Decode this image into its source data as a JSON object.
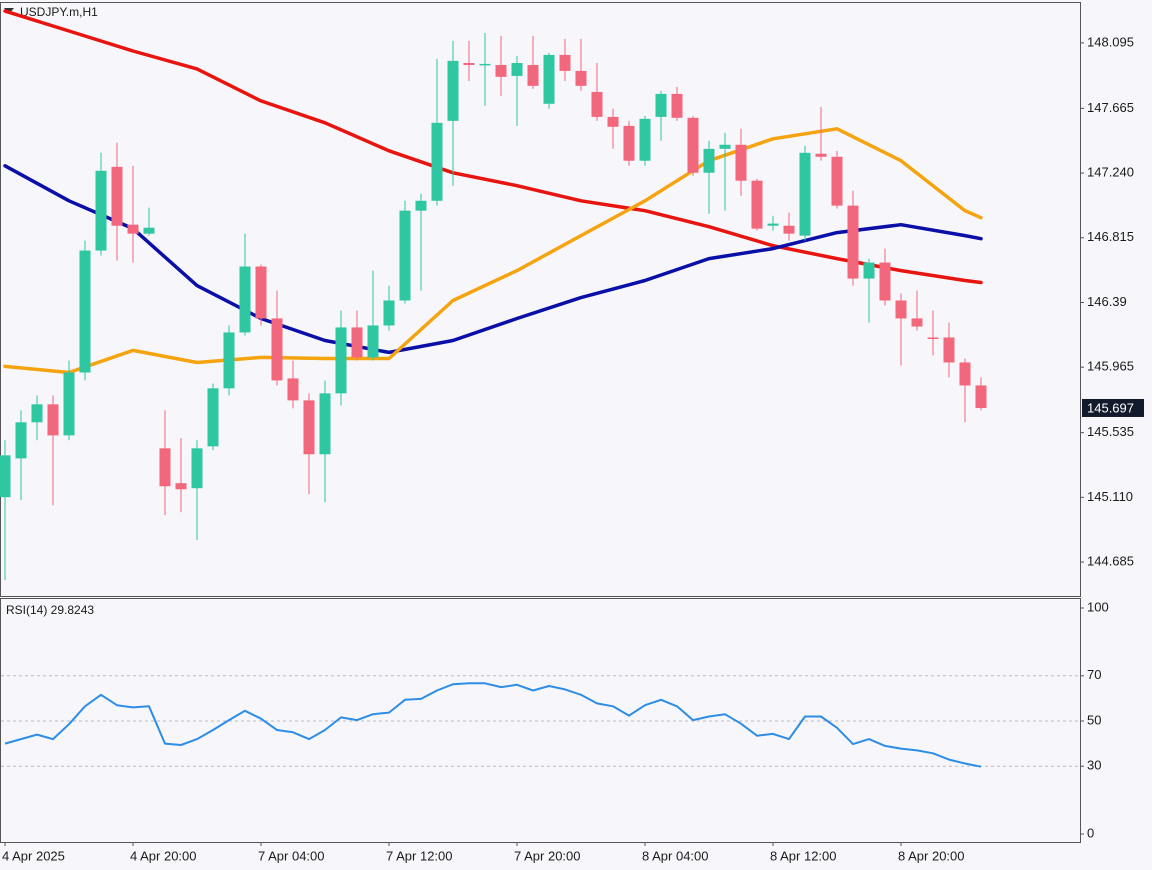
{
  "chart_data": [
    {
      "type": "candlestick",
      "title": "USDJPY.m,H1",
      "categories": [
        "4 Apr 2025",
        null,
        null,
        null,
        null,
        null,
        null,
        null,
        "4 Apr 20:00",
        null,
        null,
        null,
        null,
        null,
        null,
        null,
        "7 Apr 04:00",
        null,
        null,
        null,
        null,
        null,
        null,
        null,
        "7 Apr 12:00",
        null,
        null,
        null,
        null,
        null,
        null,
        null,
        "7 Apr 20:00",
        null,
        null,
        null,
        null,
        null,
        null,
        null,
        "8 Apr 04:00",
        null,
        null,
        null,
        null,
        null,
        null,
        null,
        "8 Apr 12:00",
        null,
        null,
        null,
        null,
        null,
        null,
        null,
        "8 Apr 20:00",
        null,
        null,
        null,
        null,
        null
      ],
      "open": [
        145.111,
        145.366,
        145.603,
        145.721,
        145.517,
        145.93,
        146.731,
        147.281,
        146.901,
        146.842,
        145.432,
        145.203,
        145.17,
        145.445,
        145.826,
        146.193,
        146.626,
        146.285,
        145.891,
        145.747,
        145.393,
        145.793,
        146.226,
        146.029,
        146.239,
        146.403,
        146.993,
        147.058,
        147.583,
        147.963,
        147.95,
        147.95,
        147.878,
        147.95,
        147.695,
        148.016,
        147.911,
        147.773,
        147.609,
        147.55,
        147.321,
        147.609,
        147.76,
        147.603,
        147.242,
        147.399,
        147.426,
        147.19,
        146.894,
        146.894,
        146.829,
        147.367,
        147.347,
        147.026,
        146.547,
        146.652,
        146.403,
        146.285,
        146.16,
        146.16,
        145.996,
        145.845
      ],
      "high": [
        145.485,
        145.681,
        145.78,
        145.78,
        146.009,
        146.796,
        147.373,
        147.439,
        147.288,
        147.013,
        145.681,
        145.498,
        145.485,
        145.858,
        146.239,
        146.842,
        146.639,
        146.468,
        146.009,
        145.793,
        145.878,
        146.337,
        146.337,
        146.599,
        146.501,
        147.058,
        147.104,
        147.99,
        148.108,
        148.108,
        148.16,
        148.141,
        148.009,
        148.141,
        148.029,
        148.121,
        148.121,
        147.963,
        147.662,
        147.583,
        147.616,
        147.78,
        147.806,
        147.616,
        147.452,
        147.504,
        147.531,
        147.203,
        146.96,
        146.98,
        147.419,
        147.675,
        147.386,
        147.124,
        146.678,
        146.744,
        146.449,
        146.468,
        146.337,
        146.258,
        146.022,
        145.898
      ],
      "low": [
        144.566,
        145.091,
        145.485,
        145.058,
        145.485,
        145.878,
        146.698,
        146.665,
        146.652,
        146.829,
        144.993,
        145.012,
        144.829,
        145.419,
        145.78,
        146.173,
        146.239,
        145.845,
        145.694,
        145.13,
        145.078,
        145.714,
        146.009,
        146.009,
        146.206,
        146.383,
        146.468,
        147.026,
        147.157,
        147.845,
        147.681,
        147.747,
        147.55,
        147.793,
        147.662,
        147.845,
        147.78,
        147.583,
        147.399,
        147.288,
        147.288,
        147.452,
        147.583,
        147.222,
        146.973,
        146.993,
        147.091,
        146.862,
        146.862,
        146.796,
        146.796,
        147.321,
        147.006,
        146.501,
        146.258,
        146.37,
        145.976,
        146.206,
        146.042,
        145.898,
        145.603,
        145.681
      ],
      "close": [
        145.386,
        145.603,
        145.721,
        145.517,
        145.93,
        146.731,
        147.255,
        146.894,
        146.842,
        146.881,
        145.183,
        145.163,
        145.432,
        145.826,
        146.193,
        146.626,
        146.285,
        145.878,
        145.747,
        145.393,
        145.793,
        146.226,
        146.029,
        146.239,
        146.403,
        146.993,
        147.058,
        147.57,
        147.977,
        147.95,
        147.957,
        147.872,
        147.963,
        147.813,
        148.016,
        147.911,
        147.813,
        147.609,
        147.544,
        147.321,
        147.596,
        147.76,
        147.603,
        147.242,
        147.399,
        147.426,
        147.19,
        146.875,
        146.908,
        146.842,
        147.373,
        147.347,
        147.026,
        146.547,
        146.652,
        146.403,
        146.285,
        146.232,
        146.153,
        145.996,
        145.845,
        145.697
      ],
      "up_color": "#2fc6a2",
      "down_color": "#f2677c",
      "series": [
        {
          "color": "#e8140f",
          "x": [
            0,
            4,
            8,
            12,
            16,
            20,
            24,
            28,
            32,
            36,
            40,
            44,
            48,
            52,
            56,
            60,
            61
          ],
          "values": [
            148.304,
            148.173,
            148.042,
            147.924,
            147.714,
            147.57,
            147.386,
            147.242,
            147.157,
            147.058,
            146.993,
            146.888,
            146.763,
            146.678,
            146.599,
            146.534,
            146.521
          ]
        },
        {
          "color": "#0a0fa8",
          "x": [
            0,
            4,
            8,
            12,
            16,
            20,
            24,
            28,
            32,
            36,
            40,
            44,
            48,
            52,
            56,
            60,
            61
          ],
          "values": [
            147.288,
            147.058,
            146.875,
            146.501,
            146.285,
            146.14,
            146.062,
            146.14,
            146.285,
            146.422,
            146.534,
            146.678,
            146.744,
            146.849,
            146.901,
            146.829,
            146.809
          ]
        },
        {
          "color": "#f5a30f",
          "x": [
            0,
            4,
            8,
            12,
            16,
            20,
            24,
            28,
            32,
            36,
            40,
            44,
            48,
            52,
            56,
            60,
            61
          ],
          "values": [
            145.97,
            145.93,
            146.075,
            145.996,
            146.029,
            146.022,
            146.022,
            146.403,
            146.599,
            146.829,
            147.058,
            147.321,
            147.465,
            147.531,
            147.321,
            146.993,
            146.947
          ]
        }
      ],
      "last_price": {
        "value": 145.697,
        "label": "145.697"
      },
      "ylim": [
        144.462,
        148.357
      ],
      "yticks": [
        148.095,
        147.665,
        {
          "value": 147.24,
          "label": "147.240"
        },
        146.815,
        146.39,
        145.965,
        145.535,
        {
          "value": 145.11,
          "label": "145.110"
        },
        144.685
      ]
    },
    {
      "type": "line",
      "title": "RSI(14) 29.8243",
      "color": "#2d8de6",
      "values": [
        40,
        42,
        44,
        42,
        48.6,
        56.5,
        61.6,
        57,
        56,
        56.5,
        40,
        39.4,
        42,
        46,
        50.4,
        54.5,
        51,
        46,
        45,
        42,
        46,
        51.6,
        50.4,
        53,
        53.7,
        59.4,
        59.8,
        63.5,
        66.3,
        66.7,
        66.7,
        65,
        66,
        63.5,
        65.5,
        64,
        61.6,
        57.8,
        56.5,
        52.4,
        57,
        59.4,
        56.5,
        50.4,
        52,
        53,
        48.8,
        43.5,
        44.3,
        42,
        52,
        52,
        47,
        39.8,
        42,
        39,
        37.8,
        37,
        35.7,
        32.9,
        31.2,
        29.8
      ],
      "ylim": [
        0,
        100
      ],
      "yticks": [
        100,
        70,
        50,
        30,
        0
      ],
      "levels": [
        70,
        50,
        30
      ]
    }
  ]
}
